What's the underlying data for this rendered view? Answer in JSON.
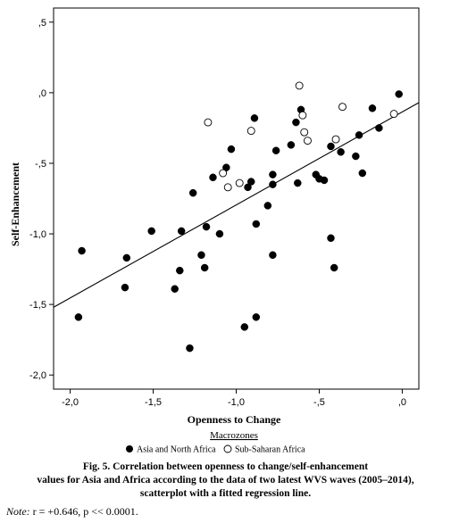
{
  "chart_data": {
    "type": "scatter",
    "xlabel": "Openness to Change",
    "ylabel": "Self-Enhancement",
    "xlim": [
      -2.1,
      0.1
    ],
    "ylim": [
      -2.1,
      0.6
    ],
    "x_ticks": [
      -2.0,
      -1.5,
      -1.0,
      -0.5,
      0.0
    ],
    "x_tick_labels": [
      "-2,0",
      "-1,5",
      "-1,0",
      "-,5",
      ",0"
    ],
    "y_ticks": [
      0.5,
      0.0,
      -0.5,
      -1.0,
      -1.5,
      -2.0
    ],
    "y_tick_labels": [
      ",5",
      ",0",
      "-,5",
      "-1,0",
      "-1,5",
      "-2,0"
    ],
    "grid": false,
    "legend_title": "Macrozones",
    "legend_position": "bottom",
    "series": [
      {
        "name": "Asia and North Africa",
        "marker": "filled-circle",
        "points": [
          [
            -1.95,
            -1.59
          ],
          [
            -1.93,
            -1.12
          ],
          [
            -1.67,
            -1.38
          ],
          [
            -1.66,
            -1.17
          ],
          [
            -1.51,
            -0.98
          ],
          [
            -1.37,
            -1.39
          ],
          [
            -1.34,
            -1.26
          ],
          [
            -1.33,
            -0.98
          ],
          [
            -1.28,
            -1.81
          ],
          [
            -1.26,
            -0.71
          ],
          [
            -1.21,
            -1.15
          ],
          [
            -1.19,
            -1.24
          ],
          [
            -1.18,
            -0.95
          ],
          [
            -1.14,
            -0.6
          ],
          [
            -1.1,
            -1.0
          ],
          [
            -1.06,
            -0.53
          ],
          [
            -1.03,
            -0.4
          ],
          [
            -0.95,
            -1.66
          ],
          [
            -0.93,
            -0.67
          ],
          [
            -0.91,
            -0.63
          ],
          [
            -0.89,
            -0.18
          ],
          [
            -0.88,
            -0.93
          ],
          [
            -0.88,
            -1.59
          ],
          [
            -0.81,
            -0.8
          ],
          [
            -0.78,
            -0.58
          ],
          [
            -0.78,
            -0.65
          ],
          [
            -0.78,
            -1.15
          ],
          [
            -0.76,
            -0.41
          ],
          [
            -0.67,
            -0.37
          ],
          [
            -0.64,
            -0.21
          ],
          [
            -0.63,
            -0.64
          ],
          [
            -0.61,
            -0.12
          ],
          [
            -0.52,
            -0.58
          ],
          [
            -0.5,
            -0.61
          ],
          [
            -0.47,
            -0.62
          ],
          [
            -0.43,
            -0.38
          ],
          [
            -0.43,
            -1.03
          ],
          [
            -0.41,
            -1.24
          ],
          [
            -0.37,
            -0.42
          ],
          [
            -0.28,
            -0.45
          ],
          [
            -0.26,
            -0.3
          ],
          [
            -0.24,
            -0.57
          ],
          [
            -0.18,
            -0.11
          ],
          [
            -0.14,
            -0.25
          ],
          [
            -0.02,
            -0.01
          ]
        ]
      },
      {
        "name": "Sub-Saharan Africa",
        "marker": "open-circle",
        "points": [
          [
            -1.17,
            -0.21
          ],
          [
            -1.08,
            -0.57
          ],
          [
            -1.05,
            -0.67
          ],
          [
            -0.98,
            -0.64
          ],
          [
            -0.91,
            -0.27
          ],
          [
            -0.62,
            0.05
          ],
          [
            -0.6,
            -0.16
          ],
          [
            -0.59,
            -0.28
          ],
          [
            -0.57,
            -0.34
          ],
          [
            -0.4,
            -0.33
          ],
          [
            -0.36,
            -0.1
          ],
          [
            -0.05,
            -0.15
          ]
        ]
      }
    ],
    "regression_line": {
      "x": [
        -2.1,
        0.1
      ],
      "y": [
        -1.52,
        -0.07
      ]
    }
  },
  "caption": {
    "line1": "Fig. 5. Correlation between openness to change/self-enhancement",
    "line2": "values for Asia and Africa according to the data of two latest WVS waves (2005–2014),",
    "line3": "scatterplot with a fitted regression line."
  },
  "note": {
    "label": "Note:",
    "text": "r = +0.646, p << 0.0001."
  }
}
